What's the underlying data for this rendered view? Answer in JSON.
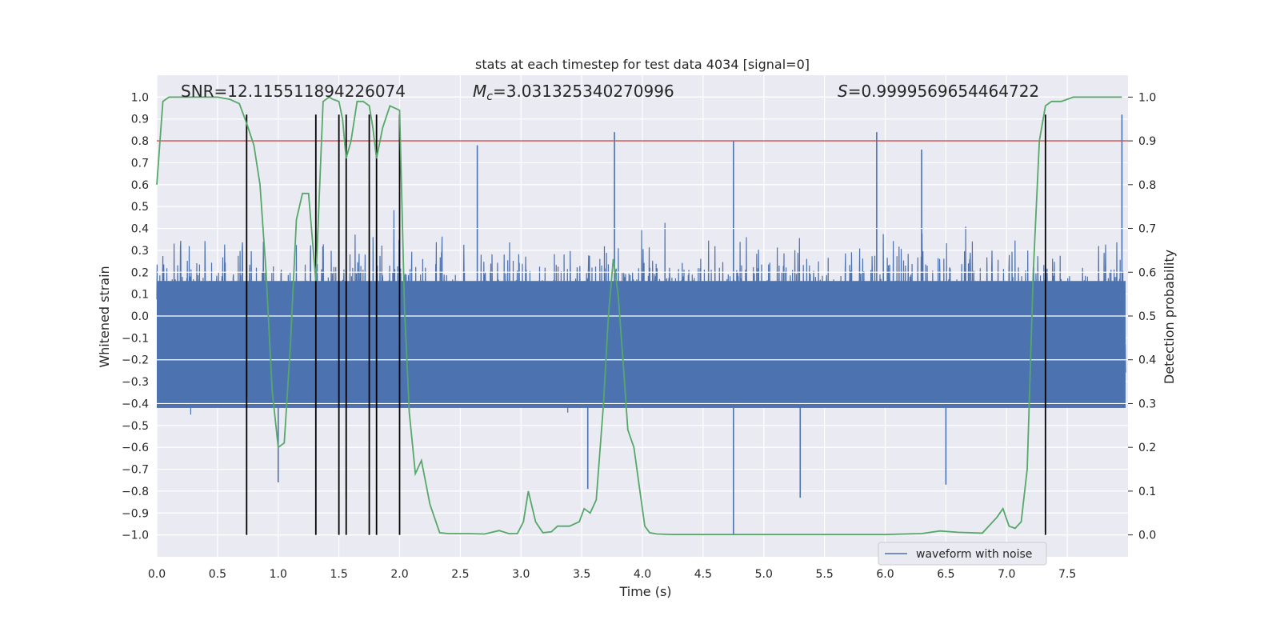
{
  "chart_data": {
    "type": "line",
    "title": "stats at each timestep for test data 4034 [signal=0]",
    "xlabel": "Time (s)",
    "ylabel": "Whitened strain",
    "ylabel_right": "Detection probability",
    "xlim": [
      0.0,
      8.0
    ],
    "ylim": [
      -1.1,
      1.1
    ],
    "ylim_right": [
      -0.05,
      1.05
    ],
    "x_ticks": [
      "0.0",
      "0.5",
      "1.0",
      "1.5",
      "2.0",
      "2.5",
      "3.0",
      "3.5",
      "4.0",
      "4.5",
      "5.0",
      "5.5",
      "6.0",
      "6.5",
      "7.0",
      "7.5"
    ],
    "y_ticks": [
      "1.0",
      "0.9",
      "0.8",
      "0.7",
      "0.6",
      "0.5",
      "0.4",
      "0.3",
      "0.2",
      "0.1",
      "0.0",
      "−0.1",
      "−0.2",
      "−0.3",
      "−0.4",
      "−0.5",
      "−0.6",
      "−0.7",
      "−0.8",
      "−0.9",
      "−1.0"
    ],
    "y_ticks_right": [
      "1.0",
      "0.9",
      "0.8",
      "0.7",
      "0.6",
      "0.5",
      "0.4",
      "0.3",
      "0.2",
      "0.1",
      "0.0"
    ],
    "annotations": {
      "snr": "SNR=12.115511894226074",
      "mc_symbol": "M",
      "mc_sub": "c",
      "mc_value": "=3.031325340270996",
      "s_symbol": "S",
      "s_value": "=0.9999569654464722"
    },
    "legend": {
      "label": "waveform with noise",
      "position": "lower-right"
    },
    "threshold": {
      "value": 0.9,
      "axis": "right",
      "color": "#c44e52"
    },
    "vertical_lines": {
      "x": [
        0.74,
        1.31,
        1.5,
        1.56,
        1.75,
        1.81,
        2.0,
        7.32
      ],
      "y_range": [
        -1.0,
        0.92
      ],
      "color": "#000000"
    },
    "series": [
      {
        "name": "waveform with noise",
        "color": "#4c72b0",
        "style": "noise",
        "band_quantile": 0.5,
        "typical_extent": [
          -0.45,
          0.45
        ],
        "extreme_peaks": [
          {
            "x": 3.77,
            "y": 0.84
          },
          {
            "x": 7.95,
            "y": 0.92
          },
          {
            "x": 2.64,
            "y": 0.78
          },
          {
            "x": 4.75,
            "y": 0.8
          },
          {
            "x": 5.93,
            "y": 0.84
          },
          {
            "x": 6.3,
            "y": 0.76
          },
          {
            "x": 4.75,
            "y": -1.0
          },
          {
            "x": 1.56,
            "y": -0.83
          },
          {
            "x": 5.3,
            "y": -0.83
          },
          {
            "x": 3.55,
            "y": -0.79
          },
          {
            "x": 6.5,
            "y": -0.77
          },
          {
            "x": 1.0,
            "y": -0.76
          }
        ]
      },
      {
        "name": "detection probability",
        "color": "#55a868",
        "axis": "right",
        "x": [
          0.0,
          0.05,
          0.1,
          0.2,
          0.35,
          0.5,
          0.6,
          0.68,
          0.74,
          0.8,
          0.85,
          0.9,
          0.95,
          1.0,
          1.05,
          1.1,
          1.15,
          1.2,
          1.25,
          1.31,
          1.37,
          1.42,
          1.45,
          1.5,
          1.53,
          1.56,
          1.6,
          1.65,
          1.7,
          1.75,
          1.78,
          1.81,
          1.86,
          1.92,
          2.0,
          2.04,
          2.08,
          2.13,
          2.18,
          2.25,
          2.33,
          2.4,
          2.55,
          2.7,
          2.82,
          2.9,
          2.97,
          3.02,
          3.06,
          3.12,
          3.18,
          3.25,
          3.3,
          3.4,
          3.48,
          3.52,
          3.57,
          3.62,
          3.68,
          3.72,
          3.76,
          3.8,
          3.84,
          3.88,
          3.93,
          3.97,
          4.02,
          4.06,
          4.12,
          4.25,
          4.5,
          5.0,
          5.5,
          6.0,
          6.3,
          6.45,
          6.6,
          6.8,
          6.92,
          6.97,
          7.02,
          7.07,
          7.12,
          7.17,
          7.22,
          7.27,
          7.32,
          7.37,
          7.45,
          7.55,
          7.65,
          7.8,
          7.95
        ],
        "values": [
          0.8,
          0.99,
          1.0,
          1.0,
          1.0,
          1.0,
          0.995,
          0.985,
          0.94,
          0.89,
          0.8,
          0.6,
          0.33,
          0.2,
          0.21,
          0.43,
          0.72,
          0.78,
          0.78,
          0.58,
          0.99,
          1.0,
          0.995,
          0.99,
          0.95,
          0.86,
          0.9,
          0.99,
          0.99,
          0.98,
          0.93,
          0.86,
          0.93,
          0.98,
          0.97,
          0.52,
          0.28,
          0.14,
          0.17,
          0.07,
          0.005,
          0.003,
          0.003,
          0.002,
          0.01,
          0.003,
          0.003,
          0.03,
          0.1,
          0.03,
          0.005,
          0.007,
          0.02,
          0.02,
          0.03,
          0.06,
          0.05,
          0.08,
          0.3,
          0.5,
          0.63,
          0.55,
          0.4,
          0.24,
          0.2,
          0.12,
          0.02,
          0.005,
          0.002,
          0.001,
          0.001,
          0.001,
          0.001,
          0.001,
          0.003,
          0.009,
          0.006,
          0.004,
          0.04,
          0.06,
          0.02,
          0.015,
          0.03,
          0.15,
          0.6,
          0.9,
          0.98,
          0.99,
          0.99,
          1.0,
          1.0,
          1.0,
          1.0
        ]
      }
    ]
  }
}
